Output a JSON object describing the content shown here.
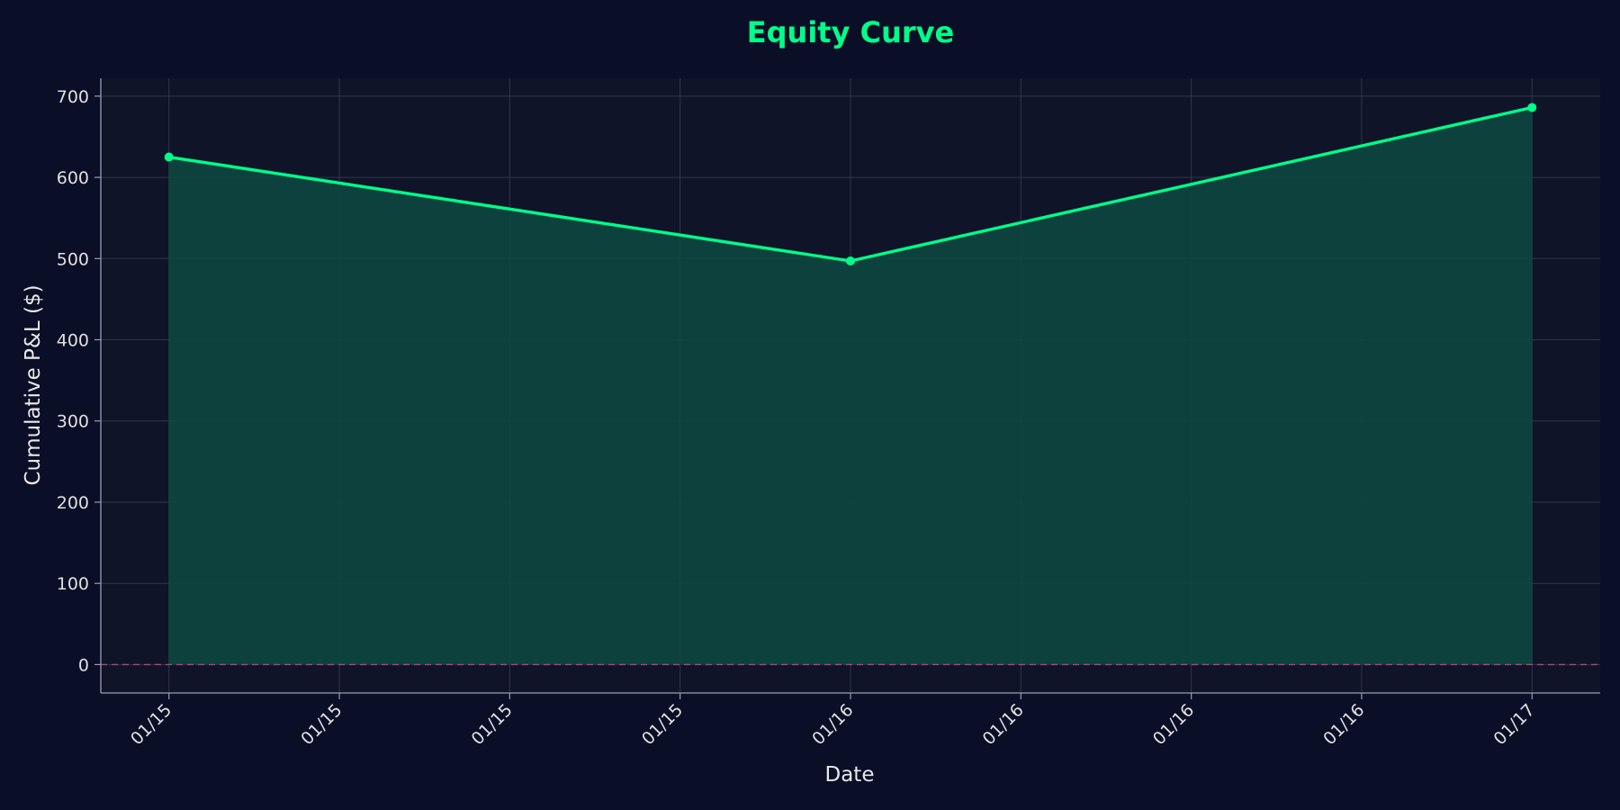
{
  "chart_data": {
    "type": "area",
    "title": "Equity Curve",
    "xlabel": "Date",
    "ylabel": "Cumulative P&L ($)",
    "x_tick_labels": [
      "01/15",
      "01/15",
      "01/15",
      "01/15",
      "01/16",
      "01/16",
      "01/16",
      "01/16",
      "01/17"
    ],
    "y_ticks": [
      0,
      100,
      200,
      300,
      400,
      500,
      600,
      700
    ],
    "ylim": [
      -35,
      722
    ],
    "xlim": [
      -0.4,
      8.4
    ],
    "series": [
      {
        "name": "Cumulative P&L",
        "x": [
          0,
          4,
          8
        ],
        "values": [
          625,
          497,
          686
        ]
      }
    ],
    "zero_line": 0,
    "grid": true,
    "colors": {
      "line": "#00ff88",
      "fill": "#0d4540",
      "title": "#00ff88",
      "zero_line": "#e0447a",
      "page_background": "#0a0e27",
      "plot_background": "#0f1428",
      "grid": "#3a3f58",
      "axis": "#9a9db0"
    }
  }
}
